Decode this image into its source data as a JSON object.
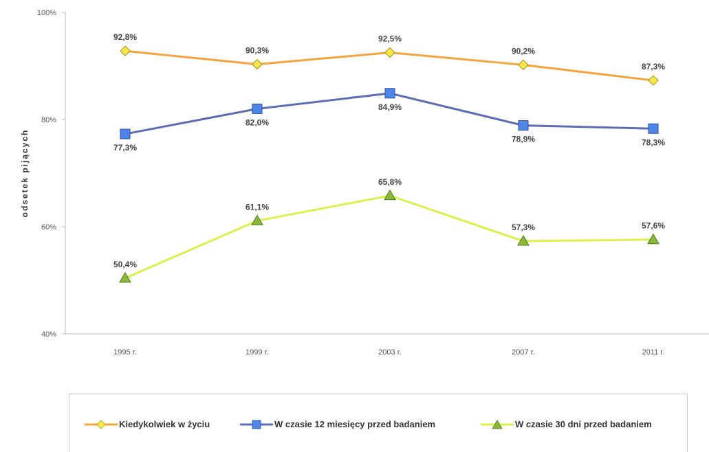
{
  "chart_data": {
    "type": "line",
    "ylabel": "odsetek pijących",
    "y_ticks": [
      "40%",
      "60%",
      "80%",
      "100%"
    ],
    "ylim": [
      40,
      100
    ],
    "categories": [
      "1995 r.",
      "1999 r.",
      "2003 r.",
      "2007 r.",
      "2011 r."
    ],
    "series": [
      {
        "name": "Kiedykolwiek w życiu",
        "color": "#f5a33a",
        "marker": "diamond",
        "values": [
          92.8,
          90.3,
          92.5,
          90.2,
          87.3
        ],
        "labels": [
          "92,8%",
          "90,3%",
          "92,5%",
          "90,2%",
          "87,3%"
        ],
        "label_pos": [
          "above",
          "above",
          "above",
          "above",
          "above"
        ]
      },
      {
        "name": "W czasie 12 miesięcy przed badaniem",
        "color": "#5b6db5",
        "marker": "square",
        "values": [
          77.3,
          82.0,
          84.9,
          78.9,
          78.3
        ],
        "labels": [
          "77,3%",
          "82,0%",
          "84,9%",
          "78,9%",
          "78,3%"
        ],
        "label_pos": [
          "below",
          "below",
          "below",
          "below",
          "below"
        ]
      },
      {
        "name": "W czasie 30 dni przed badaniem",
        "color": "#dcf04a",
        "marker": "triangle",
        "values": [
          50.4,
          61.1,
          65.8,
          57.3,
          57.6
        ],
        "labels": [
          "50,4%",
          "61,1%",
          "65,8%",
          "57,3%",
          "57,6%"
        ],
        "label_pos": [
          "above",
          "above",
          "above",
          "above",
          "above"
        ]
      }
    ],
    "legend_position": "bottom",
    "grid": false
  }
}
